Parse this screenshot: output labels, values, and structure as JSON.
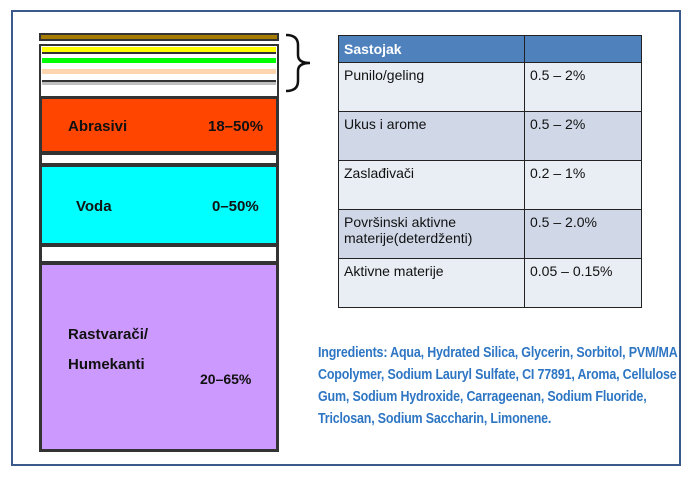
{
  "layers": [
    {
      "name": "Abrasivi",
      "range": "18–50%",
      "color": "#ff4500"
    },
    {
      "name": "Voda",
      "range": "0–50%",
      "color": "#00ffff"
    },
    {
      "name": "Rastvarači/",
      "name2": "Humekanti",
      "range": "20–65%",
      "color": "#cc99ff"
    }
  ],
  "stripe_colors": [
    "#a67c00",
    "#ffff00",
    "#00ff00",
    "#ffd5b0",
    "#c0c0c0"
  ],
  "table": {
    "headers": [
      "Sastojak",
      ""
    ],
    "rows": [
      [
        "Punilo/geling",
        "0.5 – 2%"
      ],
      [
        "Ukus i arome",
        "0.5 – 2%"
      ],
      [
        "Zaslađivači",
        "0.2 – 1%"
      ],
      [
        "Površinski aktivne materije(deterdženti)",
        "0.5 – 2.0%"
      ],
      [
        "Aktivne materije",
        "0.05 – 0.15%"
      ]
    ]
  },
  "ingredients": "Ingredients: Aqua, Hydrated Silica, Glycerin, Sorbitol, PVM/MA Copolymer, Sodium Lauryl Sulfate, CI 77891, Aroma, Cellulose Gum, Sodium Hydroxide, Carrageenan, Sodium Fluoride, Triclosan, Sodium Saccharin, Limonene."
}
